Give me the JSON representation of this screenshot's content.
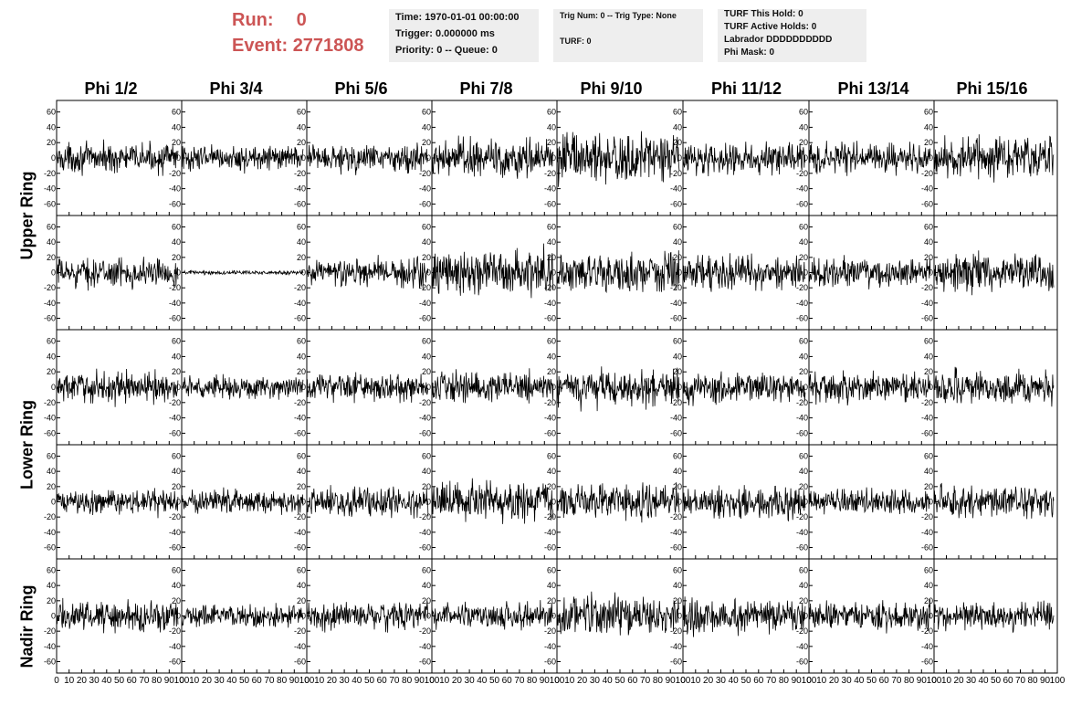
{
  "header": {
    "run_label": "Run:",
    "run_value": "0",
    "event_label": "Event:",
    "event_value": "2771808"
  },
  "info_box_time": {
    "time": "Time: 1970-01-01 00:00:00",
    "trigger": "Trigger: 0.000000 ms",
    "priority": "Priority: 0 -- Queue: 0"
  },
  "info_box_trig": {
    "trig": "Trig Num: 0 -- Trig Type: None",
    "turf": "TURF: 0"
  },
  "info_box_turf": {
    "this_hold": "TURF This Hold: 0",
    "active_holds": "TURF Active Holds: 0",
    "labrador": "Labrador DDDDDDDDDD",
    "phi_mask": "Phi Mask: 0"
  },
  "columns": [
    "Phi 1/2",
    "Phi 3/4",
    "Phi 5/6",
    "Phi 7/8",
    "Phi 9/10",
    "Phi 11/12",
    "Phi 13/14",
    "Phi 15/16"
  ],
  "rows": [
    "Upper Ring",
    "Lower Ring",
    "Nadir Ring"
  ],
  "chart_data": {
    "type": "line",
    "xlim": [
      0,
      100
    ],
    "ylim": [
      -75,
      75
    ],
    "x_ticks": [
      0,
      10,
      20,
      30,
      40,
      50,
      60,
      70,
      80,
      90,
      100
    ],
    "y_ticks": [
      -60,
      -40,
      -20,
      0,
      20,
      40,
      60
    ],
    "grid": "8 columns x 5 rows of waveform panels",
    "panel_amplitudes": [
      [
        14,
        12,
        14,
        20,
        25,
        15,
        15,
        20
      ],
      [
        14,
        2,
        15,
        22,
        20,
        16,
        14,
        18
      ],
      [
        15,
        11,
        13,
        15,
        18,
        15,
        15,
        16
      ],
      [
        12,
        12,
        14,
        20,
        18,
        16,
        12,
        16
      ],
      [
        15,
        11,
        14,
        13,
        20,
        18,
        14,
        14
      ]
    ]
  }
}
